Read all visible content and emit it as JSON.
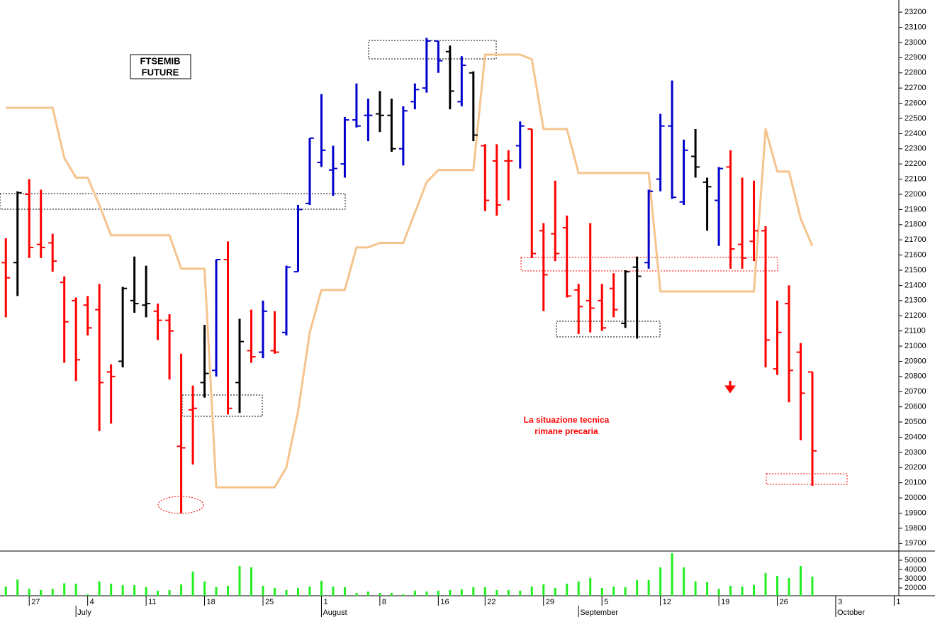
{
  "chart_data": {
    "type": "ohlc",
    "title": [
      "FTSEMIB",
      "FUTURE"
    ],
    "annotation": [
      "La situazione tecnica",
      "rimane precaria"
    ],
    "open": [
      21550,
      21550,
      22000,
      21670,
      21680,
      21420,
      21300,
      21270,
      21240,
      20830,
      20900,
      21300,
      21270,
      21230,
      21170,
      20340,
      20580,
      20760,
      20840,
      21570,
      20760,
      20970,
      20960,
      20970,
      21090,
      21490,
      21940,
      22210,
      22160,
      22200,
      22490,
      22520,
      22530,
      22520,
      22300,
      22610,
      22700,
      23010,
      22940,
      22610,
      22800,
      22320,
      22220,
      22220,
      22320,
      22430,
      21760,
      21740,
      21780,
      21370,
      21300,
      21300,
      21380,
      21150,
      21520,
      21550,
      22100,
      22450,
      21950,
      22250,
      22080,
      21960,
      22180,
      21670,
      21690,
      21760,
      20850,
      21280,
      20960,
      20830
    ],
    "high": [
      21710,
      22020,
      22100,
      22030,
      21740,
      21460,
      21320,
      21330,
      21410,
      20880,
      21390,
      21590,
      21530,
      21280,
      21210,
      20950,
      20740,
      21140,
      21570,
      21690,
      21180,
      21240,
      21300,
      21230,
      21530,
      21930,
      22370,
      22660,
      22320,
      22510,
      22730,
      22630,
      22680,
      22630,
      22580,
      22730,
      23030,
      23010,
      22980,
      22910,
      22810,
      22330,
      22330,
      22290,
      22480,
      22430,
      21810,
      22090,
      21860,
      21410,
      21810,
      21410,
      21480,
      21500,
      21590,
      22030,
      22530,
      22750,
      22360,
      22430,
      22110,
      22180,
      22290,
      22110,
      22090,
      21790,
      21300,
      21400,
      21020,
      20830
    ],
    "low": [
      21190,
      21330,
      21580,
      21580,
      21490,
      20890,
      20770,
      21070,
      20440,
      20490,
      20860,
      21220,
      21190,
      21040,
      20780,
      19900,
      20220,
      20660,
      20800,
      20550,
      20560,
      20890,
      20920,
      20950,
      21070,
      21490,
      21930,
      22180,
      21990,
      22110,
      22440,
      22350,
      22410,
      22280,
      22190,
      22560,
      22670,
      22800,
      22560,
      22580,
      22350,
      21890,
      21860,
      21960,
      22170,
      21580,
      21230,
      21560,
      21320,
      21080,
      21090,
      21100,
      21190,
      21120,
      21050,
      21510,
      22020,
      21970,
      21930,
      22110,
      21760,
      21660,
      21510,
      21510,
      21560,
      20860,
      20810,
      20630,
      20380,
      20080
    ],
    "close": [
      21450,
      22010,
      21650,
      21650,
      21560,
      21160,
      20910,
      21120,
      20760,
      20800,
      21380,
      21280,
      21280,
      21170,
      21100,
      20330,
      20590,
      20820,
      21570,
      20590,
      21030,
      20930,
      21230,
      20960,
      21520,
      21900,
      22370,
      22290,
      22170,
      22490,
      22450,
      22520,
      22520,
      22300,
      22550,
      22690,
      23010,
      22880,
      22680,
      22850,
      22390,
      21960,
      21930,
      22220,
      22450,
      21610,
      21470,
      21610,
      21330,
      21260,
      21250,
      21120,
      21240,
      21490,
      21460,
      22020,
      22450,
      21980,
      22290,
      22180,
      22050,
      22170,
      21640,
      21580,
      21760,
      21040,
      21090,
      20840,
      20690,
      20310
    ],
    "bar_colors": [
      "#ff0000",
      "#000000",
      "#ff0000",
      "#ff0000",
      "#ff0000",
      "#ff0000",
      "#ff0000",
      "#ff0000",
      "#ff0000",
      "#ff0000",
      "#000000",
      "#000000",
      "#000000",
      "#ff0000",
      "#ff0000",
      "#ff0000",
      "#ff0000",
      "#000000",
      "#0000cc",
      "#ff0000",
      "#000000",
      "#ff0000",
      "#0000cc",
      "#ff0000",
      "#0000cc",
      "#0000cc",
      "#0000cc",
      "#0000cc",
      "#0000cc",
      "#0000cc",
      "#0000cc",
      "#0000cc",
      "#000000",
      "#000000",
      "#0000cc",
      "#0000cc",
      "#0000cc",
      "#0000cc",
      "#000000",
      "#0000cc",
      "#000000",
      "#ff0000",
      "#ff0000",
      "#ff0000",
      "#0000cc",
      "#ff0000",
      "#ff0000",
      "#ff0000",
      "#ff0000",
      "#ff0000",
      "#ff0000",
      "#ff0000",
      "#ff0000",
      "#000000",
      "#000000",
      "#0000cc",
      "#0000cc",
      "#0000cc",
      "#0000cc",
      "#000000",
      "#000000",
      "#0000cc",
      "#ff0000",
      "#ff0000",
      "#ff0000",
      "#ff0000",
      "#ff0000",
      "#ff0000",
      "#ff0000",
      "#ff0000"
    ],
    "line": {
      "color": "#f5c48e",
      "values": [
        22570,
        22570,
        22570,
        22570,
        22570,
        22240,
        22110,
        22110,
        21930,
        21730,
        21730,
        21730,
        21730,
        21730,
        21730,
        21510,
        21510,
        21510,
        20070,
        20070,
        20070,
        20070,
        20070,
        20070,
        20200,
        20570,
        21090,
        21370,
        21370,
        21370,
        21650,
        21650,
        21680,
        21680,
        21680,
        21880,
        22080,
        22160,
        22160,
        22160,
        22160,
        22920,
        22920,
        22920,
        22920,
        22890,
        22430,
        22430,
        22430,
        22140,
        22140,
        22140,
        22140,
        22140,
        22140,
        22140,
        21360,
        21360,
        21360,
        21360,
        21360,
        21360,
        21360,
        21360,
        21360,
        22430,
        22150,
        22150,
        21840,
        21660
      ]
    },
    "volume": {
      "color": "#22ee22",
      "values": [
        21500,
        29000,
        19000,
        17700,
        19000,
        25000,
        24600,
        13000,
        27000,
        24600,
        23000,
        23000,
        20800,
        17000,
        17700,
        23800,
        37700,
        27000,
        20800,
        22300,
        43800,
        42300,
        22300,
        20000,
        17700,
        20000,
        21500,
        27700,
        21500,
        20800,
        14600,
        16000,
        14600,
        14600,
        13000,
        17000,
        16000,
        17000,
        17700,
        18500,
        20800,
        20800,
        17700,
        17700,
        17000,
        21500,
        23800,
        20000,
        24600,
        27000,
        30800,
        20000,
        21500,
        20800,
        28500,
        28500,
        42300,
        57700,
        42300,
        27000,
        26200,
        19000,
        22300,
        21500,
        23000,
        36200,
        33100,
        30800,
        43800,
        32300
      ],
      "ylim": [
        11500,
        60000
      ],
      "yticks": [
        20000,
        30000,
        40000,
        50000
      ]
    },
    "xlim": [
      -0.5,
      76.4
    ],
    "ylim": [
      19650,
      23280
    ],
    "yticks": [
      19700,
      19800,
      19900,
      20000,
      20100,
      20200,
      20300,
      20400,
      20500,
      20600,
      20700,
      20800,
      20900,
      21000,
      21100,
      21200,
      21300,
      21400,
      21500,
      21600,
      21700,
      21800,
      21900,
      22000,
      22100,
      22200,
      22300,
      22400,
      22500,
      22600,
      22700,
      22800,
      22900,
      23000,
      23100,
      23200
    ],
    "xticks": [
      {
        "value": 2,
        "label": "27"
      },
      {
        "value": 7,
        "label": "4"
      },
      {
        "value": 12,
        "label": "11"
      },
      {
        "value": 17,
        "label": "18"
      },
      {
        "value": 22,
        "label": "25"
      },
      {
        "value": 27,
        "label": "1"
      },
      {
        "value": 32,
        "label": "8"
      },
      {
        "value": 37,
        "label": "16"
      },
      {
        "value": 41,
        "label": "22"
      },
      {
        "value": 46,
        "label": "29"
      },
      {
        "value": 51,
        "label": "5"
      },
      {
        "value": 56,
        "label": "12"
      },
      {
        "value": 61,
        "label": "19"
      },
      {
        "value": 66,
        "label": "26"
      },
      {
        "value": 71,
        "label": "3"
      },
      {
        "value": 76,
        "label": "1"
      }
    ],
    "month_ticks": [
      {
        "value": 6,
        "label": "July"
      },
      {
        "value": 27,
        "label": "August"
      },
      {
        "value": 49,
        "label": "September"
      },
      {
        "value": 71,
        "label": "October"
      }
    ]
  }
}
